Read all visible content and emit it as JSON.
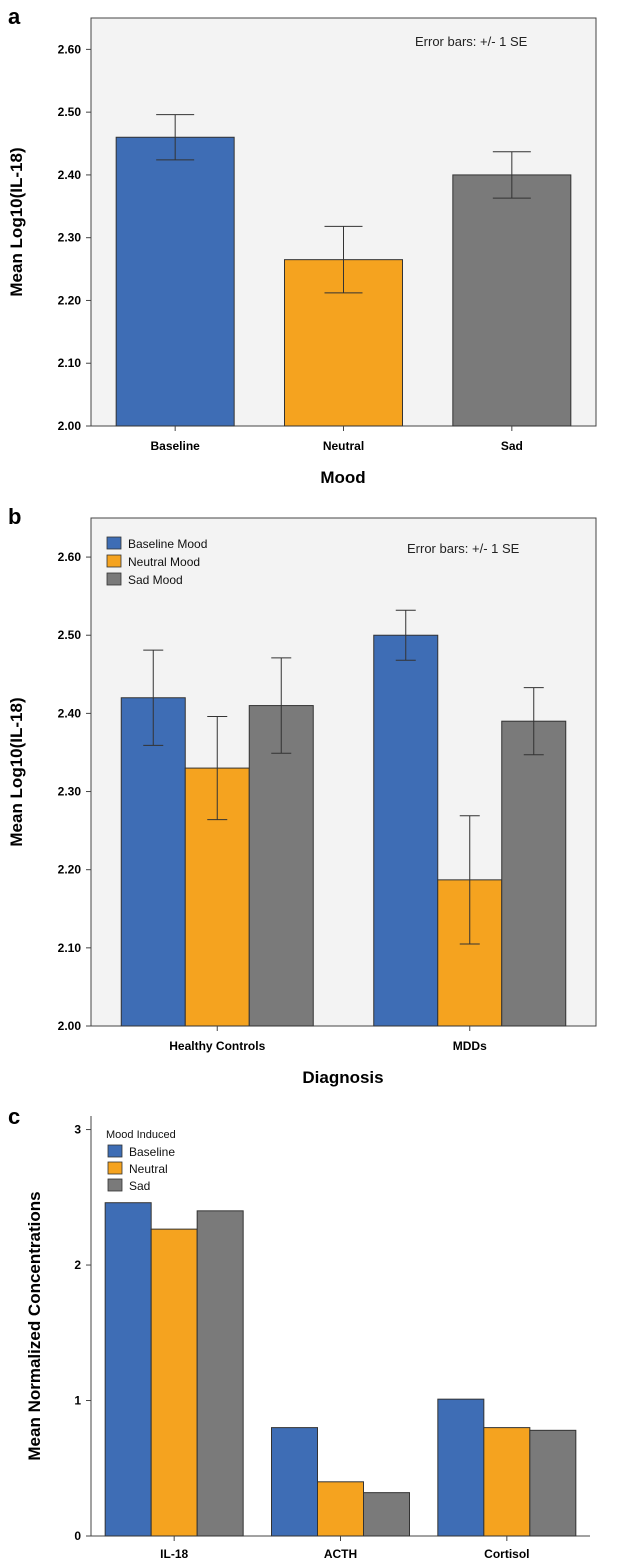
{
  "chart_data": [
    {
      "panel": "a",
      "type": "bar",
      "categories": [
        "Baseline",
        "Neutral",
        "Sad"
      ],
      "values": [
        2.46,
        2.265,
        2.4
      ],
      "errors": [
        0.036,
        0.053,
        0.037
      ],
      "colors": [
        "#3e6db5",
        "#f5a31f",
        "#7a7a7a"
      ],
      "ylim": [
        2.0,
        2.65
      ],
      "yticks": [
        "2.00",
        "2.10",
        "2.20",
        "2.30",
        "2.40",
        "2.50",
        "2.60"
      ],
      "ylabel": "Mean Log10(IL-18)",
      "xlabel": "Mood",
      "annotation": "Error bars: +/- 1 SE"
    },
    {
      "panel": "b",
      "type": "bar",
      "categories": [
        "Healthy Controls",
        "MDDs"
      ],
      "series": [
        {
          "name": "Baseline Mood",
          "values": [
            2.42,
            2.5
          ],
          "errors": [
            0.061,
            0.032
          ],
          "color": "#3e6db5"
        },
        {
          "name": "Neutral Mood",
          "values": [
            2.33,
            2.187
          ],
          "errors": [
            0.066,
            0.082
          ],
          "color": "#f5a31f"
        },
        {
          "name": "Sad Mood",
          "values": [
            2.41,
            2.39
          ],
          "errors": [
            0.061,
            0.043
          ],
          "color": "#7a7a7a"
        }
      ],
      "ylim": [
        2.0,
        2.65
      ],
      "yticks": [
        "2.00",
        "2.10",
        "2.20",
        "2.30",
        "2.40",
        "2.50",
        "2.60"
      ],
      "ylabel": "Mean Log10(IL-18)",
      "xlabel": "Diagnosis",
      "annotation": "Error bars: +/- 1 SE",
      "legend_position": "top-left"
    },
    {
      "panel": "c",
      "type": "bar",
      "categories": [
        "IL-18",
        "ACTH",
        "Cortisol"
      ],
      "legend_title": "Mood Induced",
      "series": [
        {
          "name": "Baseline",
          "values": [
            2.46,
            0.8,
            1.01
          ],
          "color": "#3e6db5"
        },
        {
          "name": "Neutral",
          "values": [
            2.265,
            0.4,
            0.8
          ],
          "color": "#f5a31f"
        },
        {
          "name": "Sad",
          "values": [
            2.4,
            0.32,
            0.78
          ],
          "color": "#7a7a7a"
        }
      ],
      "ylim": [
        0,
        3.1
      ],
      "yticks": [
        "0",
        "1",
        "2",
        "3"
      ],
      "ylabel": "Mean Normalized Concentrations",
      "xlabel": "",
      "legend_position": "top-left"
    }
  ]
}
